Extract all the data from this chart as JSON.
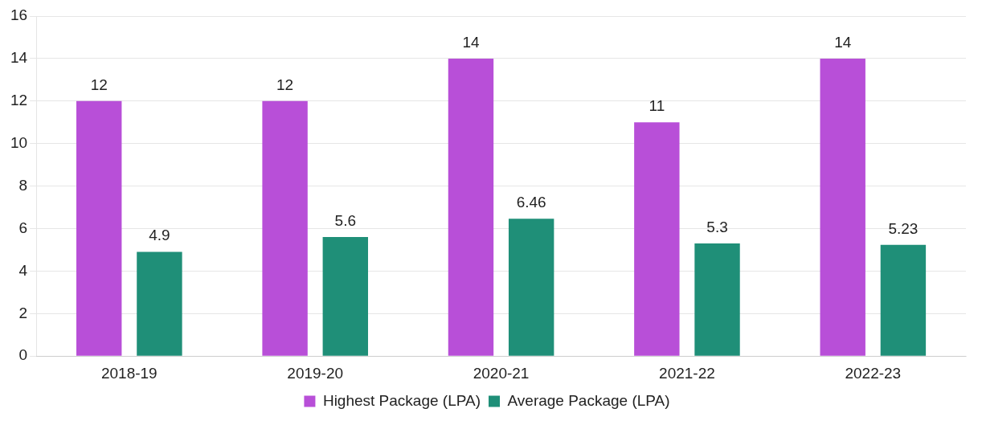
{
  "chart_data": {
    "type": "bar",
    "categories": [
      "2018-19",
      "2019-20",
      "2020-21",
      "2021-22",
      "2022-23"
    ],
    "series": [
      {
        "name": "Highest Package (LPA)",
        "color": "#b84fd8",
        "values": [
          12,
          12,
          14,
          11,
          14
        ]
      },
      {
        "name": "Average Package (LPA)",
        "color": "#1f8f78",
        "values": [
          4.9,
          5.6,
          6.46,
          5.3,
          5.23
        ]
      }
    ],
    "ylim": [
      0,
      16
    ],
    "yticks": [
      0,
      2,
      4,
      6,
      8,
      10,
      12,
      14,
      16
    ],
    "grid": "y",
    "legend": "bottom",
    "data_labels": true
  }
}
